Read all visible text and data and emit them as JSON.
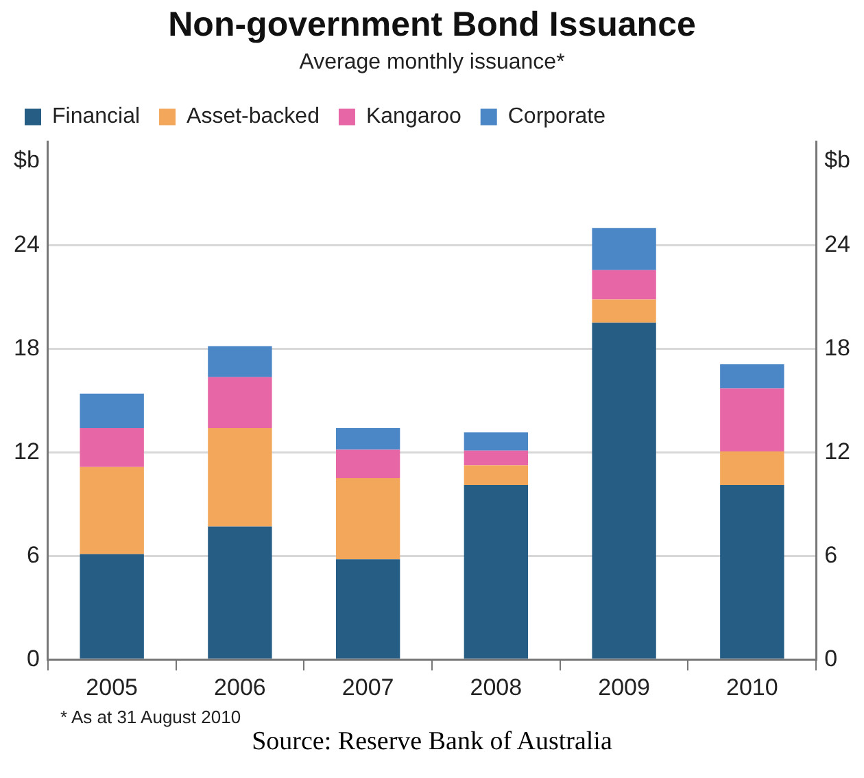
{
  "chart_data": {
    "type": "bar",
    "title": "Non-government Bond Issuance",
    "subtitle": "Average monthly issuance*",
    "ylabel": "$b",
    "y2label": "$b",
    "categories": [
      "2005",
      "2006",
      "2007",
      "2008",
      "2009",
      "2010"
    ],
    "stacked": true,
    "series": [
      {
        "name": "Financial",
        "color": "#255d85",
        "values": [
          6.1,
          7.7,
          5.8,
          10.1,
          19.5,
          10.1
        ]
      },
      {
        "name": "Asset-backed",
        "color": "#f2a75a",
        "values": [
          5.05,
          5.7,
          4.7,
          1.15,
          1.35,
          1.95
        ]
      },
      {
        "name": "Kangaroo",
        "color": "#e766a6",
        "values": [
          2.25,
          2.95,
          1.65,
          0.85,
          1.7,
          3.65
        ]
      },
      {
        "name": "Corporate",
        "color": "#4b86c6",
        "values": [
          2.0,
          1.8,
          1.25,
          1.05,
          2.45,
          1.4
        ]
      }
    ],
    "ylim": [
      0,
      30
    ],
    "yticks": [
      0,
      6,
      12,
      18,
      24
    ],
    "y2lim": [
      0,
      30
    ],
    "y2ticks": [
      0,
      6,
      12,
      18,
      24
    ],
    "grid": "y",
    "legend": "top left",
    "annotations": [
      "*   As at 31 August 2010",
      "Source: Reserve Bank of Australia"
    ]
  }
}
